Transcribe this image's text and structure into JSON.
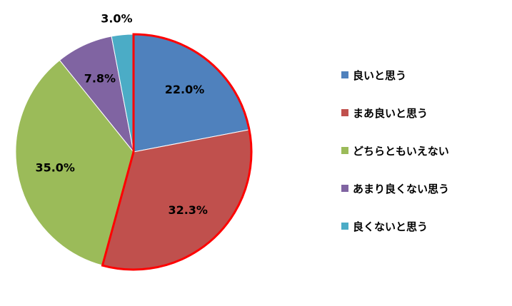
{
  "chart_data": {
    "type": "pie",
    "categories": [
      "良いと思う",
      "まあ良いと思う",
      "どちらともいえない",
      "あまり良くない思う",
      "良くないと思う"
    ],
    "values": [
      22.0,
      32.3,
      35.0,
      7.8,
      3.0
    ],
    "data_labels": [
      "22.0%",
      "32.3%",
      "35.0%",
      "7.8%",
      "3.0%"
    ],
    "colors": [
      "#4F81BD",
      "#C0504D",
      "#9BBB59",
      "#8064A2",
      "#4BACC6"
    ],
    "highlighted": [
      "良いと思う",
      "まあ良いと思う"
    ],
    "highlight_color": "#FF0000",
    "legend_position": "right",
    "start_angle_deg": 0,
    "direction": "clockwise"
  }
}
